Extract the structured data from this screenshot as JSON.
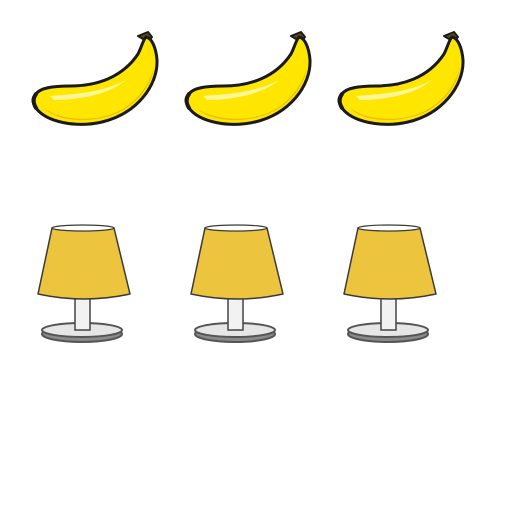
{
  "scene": {
    "background": "#ffffff"
  },
  "bananas": {
    "count": 3,
    "icon": "banana-icon",
    "colors": {
      "peel": "#ffe600",
      "shade": "#e8b800",
      "highlight": "#fff7a8",
      "outline": "#1a1a1a",
      "stem": "#5a4a1a"
    }
  },
  "lamps": {
    "count": 3,
    "icon": "lamp-icon",
    "colors": {
      "shade": "#ecc43e",
      "shade_outline": "#3a3a3a",
      "shade_top": "#ffffff",
      "stem": "#f2f2f2",
      "stem_outline": "#444444",
      "base_top": "#e6e6e6",
      "base_rim": "#555555",
      "base_shadow": "#8a8a8a"
    }
  }
}
